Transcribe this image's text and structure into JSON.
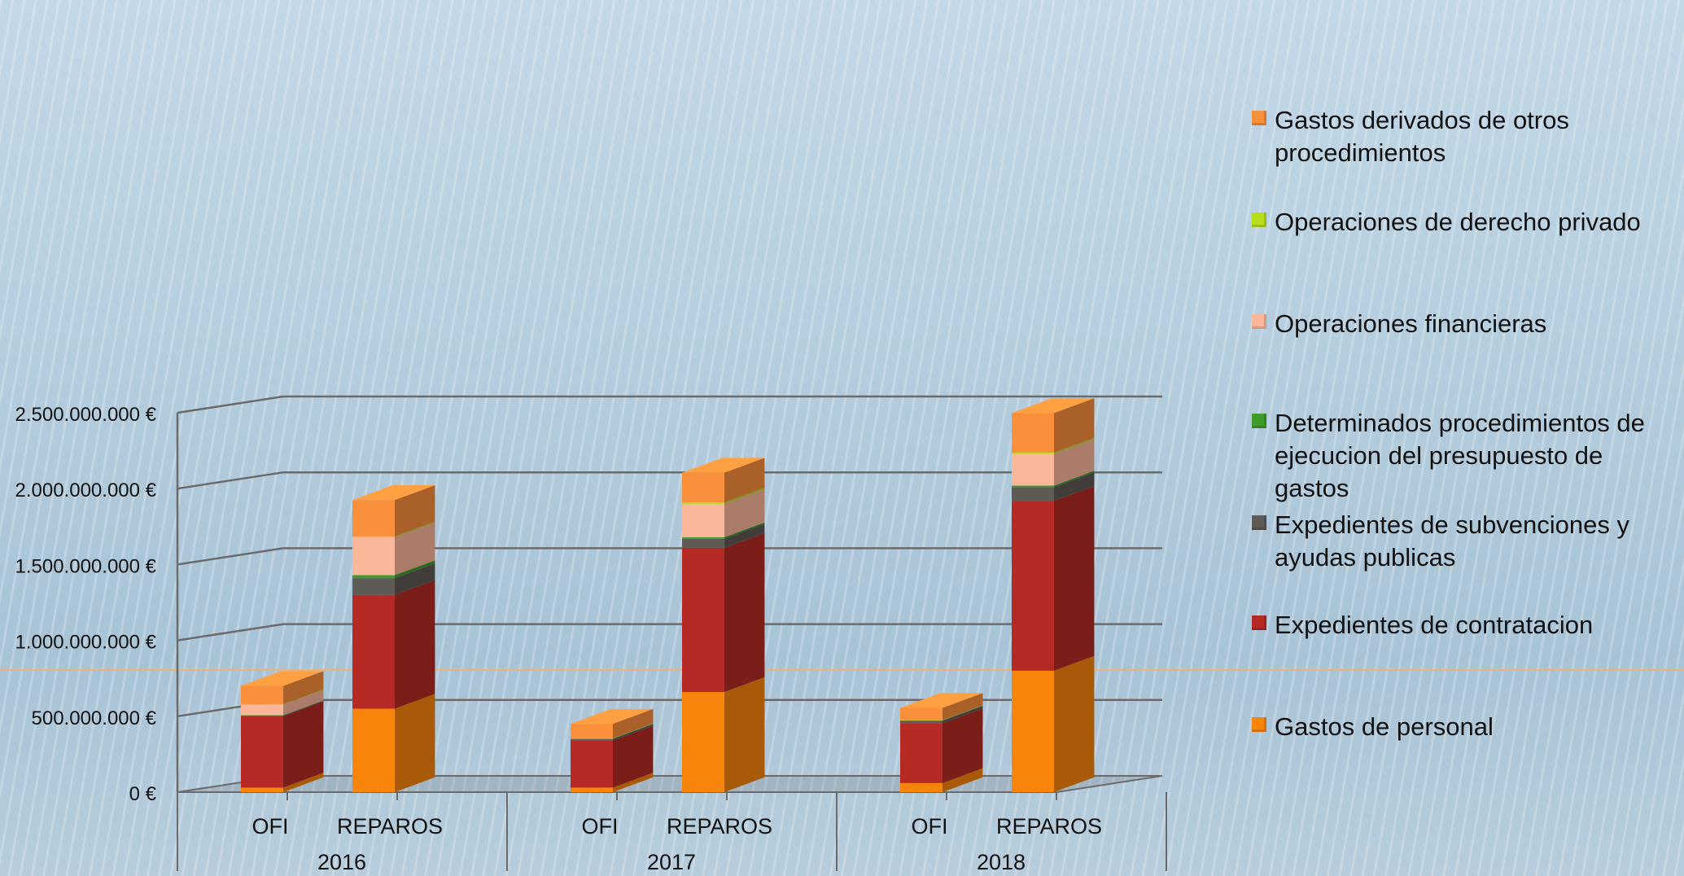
{
  "chart_data": {
    "type": "bar",
    "stacked": true,
    "three_d": true,
    "groups": [
      "2016",
      "2017",
      "2018"
    ],
    "subcategories": [
      "OFI",
      "REPAROS"
    ],
    "y_ticks": [
      "0 €",
      "500.000.000 €",
      "1.000.000.000 €",
      "1.500.000.000 €",
      "2.000.000.000 €",
      "2.500.000.000 €"
    ],
    "ylim": [
      0,
      2500000000
    ],
    "grid": true,
    "legend_position": "right",
    "series": [
      {
        "name": "Gastos de personal",
        "color": "#f7850c",
        "values": [
          30000000,
          550000000,
          30000000,
          660000000,
          60000000,
          800000000
        ]
      },
      {
        "name": "Expedientes de contratacion",
        "color": "#b52a25",
        "values": [
          470000000,
          750000000,
          310000000,
          950000000,
          395000000,
          1120000000
        ]
      },
      {
        "name": "Expedientes de subvenciones y ayudas publicas",
        "color": "#5e5a55",
        "values": [
          5000000,
          110000000,
          10000000,
          60000000,
          15000000,
          90000000
        ]
      },
      {
        "name": "Determinados procedimientos de ejecucion del presupuesto de gastos",
        "color": "#3f9b2a",
        "values": [
          2000000,
          20000000,
          3000000,
          10000000,
          3000000,
          10000000
        ]
      },
      {
        "name": "Operaciones financieras",
        "color": "#fbb79a",
        "values": [
          70000000,
          250000000,
          0,
          220000000,
          0,
          210000000
        ]
      },
      {
        "name": "Operaciones de derecho privado",
        "color": "#b8dd1a",
        "values": [
          3000000,
          5000000,
          2000000,
          10000000,
          2000000,
          8000000
        ]
      },
      {
        "name": "Gastos derivados de otros procedimientos",
        "color": "#fa8f3c",
        "values": [
          120000000,
          240000000,
          95000000,
          195000000,
          80000000,
          260000000
        ]
      }
    ]
  },
  "legend": {
    "items": [
      {
        "label": "Gastos derivados de otros procedimientos",
        "color": "#fa8f3c"
      },
      {
        "label": "Operaciones de derecho privado",
        "color": "#b8dd1a"
      },
      {
        "label": "Operaciones financieras",
        "color": "#fbb79a"
      },
      {
        "label": "Determinados procedimientos de ejecucion del presupuesto de gastos",
        "color": "#3f9b2a"
      },
      {
        "label": "Expedientes de subvenciones y ayudas publicas",
        "color": "#5e5a55"
      },
      {
        "label": "Expedientes de contratacion",
        "color": "#b52a25"
      },
      {
        "label": "Gastos de personal",
        "color": "#f7850c"
      }
    ]
  }
}
